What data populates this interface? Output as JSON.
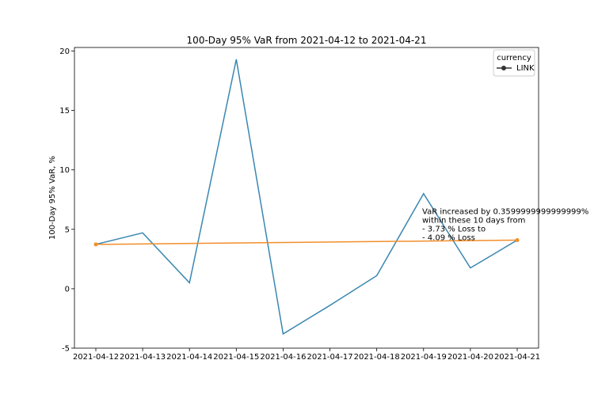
{
  "chart_data": {
    "type": "line",
    "title": "100-Day 95% VaR from 2021-04-12 to 2021-04-21",
    "xlabel": "",
    "ylabel": "100-Day 95% VaR, %",
    "x": [
      "2021-04-12",
      "2021-04-13",
      "2021-04-14",
      "2021-04-15",
      "2021-04-16",
      "2021-04-17",
      "2021-04-18",
      "2021-04-19",
      "2021-04-20",
      "2021-04-21"
    ],
    "ylim": [
      -5,
      20.3
    ],
    "yticks": [
      -5,
      0,
      5,
      10,
      15,
      20
    ],
    "grid": false,
    "series": [
      {
        "name": "LINK",
        "color": "#3a87b0",
        "values": [
          3.73,
          4.7,
          0.5,
          19.3,
          -3.8,
          -1.4,
          1.1,
          8.0,
          1.75,
          4.09
        ]
      },
      {
        "color": "#f28e2b",
        "x": [
          "2021-04-12",
          "2021-04-21"
        ],
        "values": [
          3.73,
          4.09
        ]
      }
    ],
    "legend": {
      "title": "currency",
      "entries": [
        "LINK"
      ],
      "placement": "top-right"
    },
    "annotation": {
      "lines": [
        "VaR increased by 0.3599999999999999%",
        " within these 10 days from",
        " - 3.73 % Loss to",
        " - 4.09 % Loss"
      ]
    }
  }
}
